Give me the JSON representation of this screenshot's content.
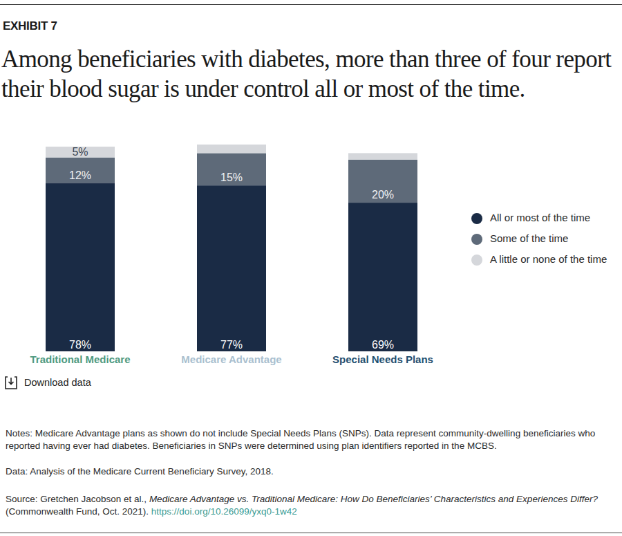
{
  "chart_data": {
    "type": "bar",
    "stacked": true,
    "exhibit": "EXHIBIT 7",
    "title": "Among beneficiaries with diabetes, more than three of four report their blood sugar is under control all or most of the time.",
    "categories": [
      "Traditional Medicare",
      "Medicare Advantage",
      "Special Needs Plans"
    ],
    "series": [
      {
        "name": "All or most of the time",
        "color": "#1a2b45",
        "values": [
          78,
          77,
          69
        ],
        "value_labels": [
          "78%",
          "77%",
          "69%"
        ]
      },
      {
        "name": "Some of the time",
        "color": "#5e6a79",
        "values": [
          12,
          15,
          20
        ],
        "value_labels": [
          "12%",
          "15%",
          "20%"
        ]
      },
      {
        "name": "A little or none of the time",
        "color": "#d5d7db",
        "values": [
          5,
          4,
          3
        ],
        "value_labels": [
          "5%",
          null,
          null
        ]
      }
    ],
    "ylim": [
      0,
      100
    ],
    "data_labels": true,
    "tick_labels": "x",
    "legend": "right",
    "download_label": "Download data",
    "notes": "Notes: Medicare Advantage plans as shown do not include Special Needs Plans (SNPs). Data represent community-dwelling beneficiaries who reported having ever had diabetes. Beneficiaries in SNPs were determined using plan identifiers reported in the MCBS.",
    "data_note": "Data: Analysis of the Medicare Current Beneficiary Survey, 2018.",
    "source": {
      "prefix": "Source: Gretchen Jacobson et al., ",
      "title": "Medicare Advantage vs. Traditional Medicare: How Do Beneficiaries’ Characteristics and Experiences Differ?",
      "suffix": " (Commonwealth Fund, Oct. 2021). ",
      "link": "https://doi.org/10.26099/yxq0-1w42"
    }
  }
}
